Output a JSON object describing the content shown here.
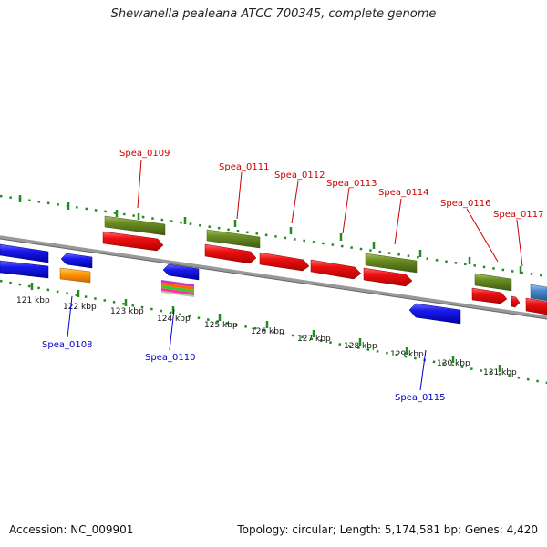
{
  "title": "Shewanella pealeana ATCC 700345, complete genome",
  "footer": {
    "accession": "Accession: NC_009901",
    "summary": "Topology: circular; Length: 5,174,581 bp; Genes: 4,420"
  },
  "colors": {
    "forward_label": "#cc0000",
    "reverse_label": "#0000cc",
    "cds_red": "#ee1111",
    "cds_green": "#6b8e23",
    "cds_blue": "#1a1aee",
    "cds_orange": "#ff9900",
    "cds_steelblue": "#4a86c8",
    "ruler_dots": "#228b22",
    "backbone": "#888888"
  },
  "axis_ticks": [
    "121 kbp",
    "122 kbp",
    "123 kbp",
    "124 kbp",
    "125 kbp",
    "126 kbp",
    "127 kbp",
    "128 kbp",
    "129 kbp",
    "130 kbp",
    "131 kbp"
  ],
  "gene_labels_top": [
    "Spea_0109",
    "Spea_0111",
    "Spea_0112",
    "Spea_0113",
    "Spea_0114",
    "Spea_0116",
    "Spea_0117"
  ],
  "gene_labels_bottom": [
    "Spea_0108",
    "Spea_0110",
    "Spea_0115"
  ]
}
